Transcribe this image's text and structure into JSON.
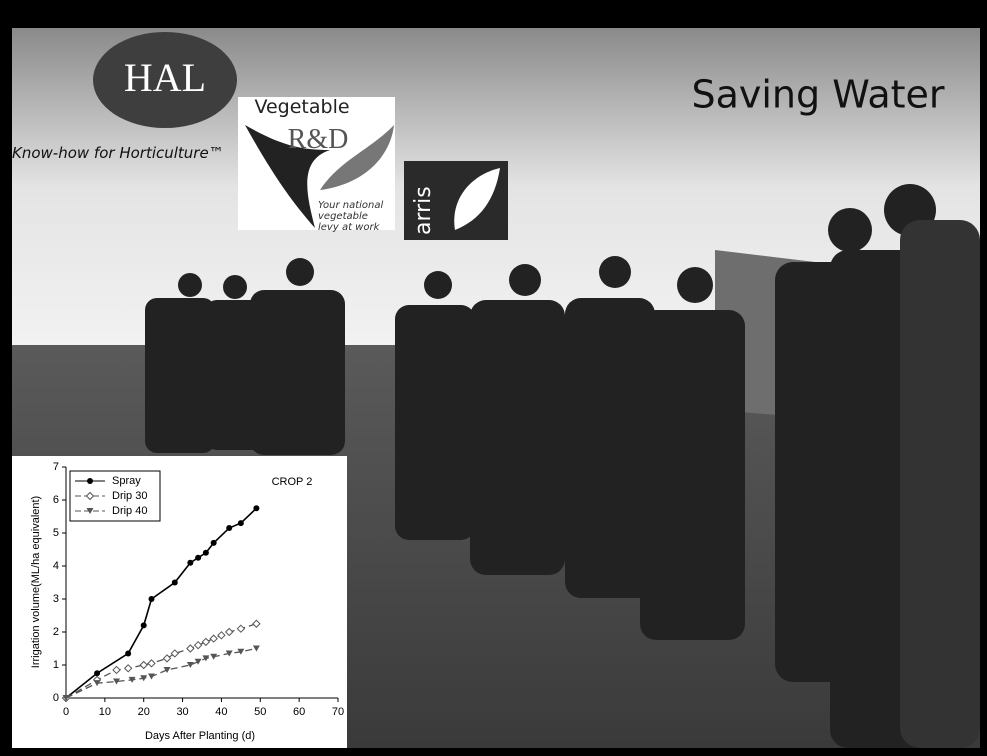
{
  "slide": {
    "title": "Saving Water",
    "hal": {
      "name": "HAL",
      "tagline": "Know-how for Horticulture™"
    },
    "vegetable": {
      "line1": "Vegetable",
      "line2": "R&D",
      "tagline": [
        "Your national",
        "vegetable",
        "levy at work"
      ]
    },
    "arris": "arris"
  },
  "chart_data": {
    "type": "line",
    "annotation": "CROP 2",
    "x_label": "Days After Planting (d)",
    "y_label": "Irrigation volume(ML/ha equivalent)",
    "xlim": [
      0,
      70
    ],
    "xticks": [
      0,
      10,
      20,
      30,
      40,
      50,
      60,
      70
    ],
    "ylim": [
      0,
      7
    ],
    "yticks": [
      0,
      1,
      2,
      3,
      4,
      5,
      6,
      7
    ],
    "legend": "upper left",
    "series": [
      {
        "name": "Spray",
        "color": "#000000",
        "dash": false,
        "marker": "circle",
        "x": [
          0,
          8,
          16,
          20,
          22,
          28,
          32,
          34,
          36,
          38,
          42,
          45,
          49
        ],
        "values": [
          0,
          0.75,
          1.35,
          2.2,
          3.0,
          3.5,
          4.1,
          4.25,
          4.4,
          4.7,
          5.15,
          5.3,
          5.75
        ]
      },
      {
        "name": "Drip 30",
        "color": "#555555",
        "dash": true,
        "marker": "diamond",
        "x": [
          0,
          8,
          13,
          16,
          20,
          22,
          26,
          28,
          32,
          34,
          36,
          38,
          40,
          42,
          45,
          49
        ],
        "values": [
          0,
          0.55,
          0.85,
          0.9,
          1.0,
          1.05,
          1.2,
          1.35,
          1.5,
          1.6,
          1.7,
          1.8,
          1.9,
          2.0,
          2.1,
          2.25
        ]
      },
      {
        "name": "Drip 40",
        "color": "#555555",
        "dash": true,
        "marker": "triangle",
        "x": [
          0,
          8,
          13,
          17,
          20,
          22,
          26,
          32,
          34,
          36,
          38,
          42,
          45,
          49
        ],
        "values": [
          0,
          0.45,
          0.5,
          0.55,
          0.6,
          0.65,
          0.85,
          1.0,
          1.1,
          1.2,
          1.25,
          1.35,
          1.4,
          1.5
        ]
      }
    ]
  }
}
